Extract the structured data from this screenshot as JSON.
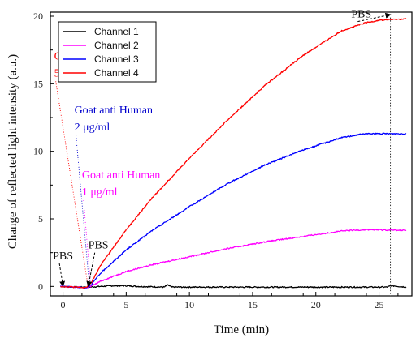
{
  "chart_data": {
    "type": "line",
    "xlabel": "Time (min)",
    "ylabel": "Change of reflected light intensity (a.u.)",
    "xlim": [
      -1,
      27.6
    ],
    "ylim": [
      -0.7,
      20.3
    ],
    "xticks": [
      0,
      5,
      10,
      15,
      20,
      25
    ],
    "yticks": [
      0,
      5,
      10,
      15,
      20
    ],
    "grid": false,
    "legend_position": "top-left",
    "series": [
      {
        "name": "Channel 1",
        "color": "#000000",
        "x": [
          -0.2,
          1,
          2,
          3,
          4,
          5,
          6,
          8,
          8.3,
          8.6,
          10,
          13,
          16,
          20,
          24,
          25.6,
          26,
          27.2
        ],
        "y": [
          0,
          -0.05,
          -0.05,
          0.0,
          0.05,
          0.05,
          0.0,
          -0.05,
          0.1,
          -0.05,
          -0.05,
          -0.05,
          -0.05,
          -0.05,
          -0.05,
          -0.05,
          0.05,
          -0.05
        ]
      },
      {
        "name": "Channel 2",
        "color": "#ff00ff",
        "x": [
          -0.2,
          1,
          1.8,
          2.2,
          3,
          5,
          7,
          10,
          13,
          16,
          19,
          22,
          24,
          27.2
        ],
        "y": [
          0,
          -0.05,
          -0.1,
          0.0,
          0.4,
          1.1,
          1.6,
          2.2,
          2.8,
          3.3,
          3.7,
          4.1,
          4.2,
          4.15
        ]
      },
      {
        "name": "Channel 3",
        "color": "#0000ff",
        "x": [
          -0.2,
          1,
          1.8,
          2.2,
          3,
          5,
          7,
          10,
          13,
          16,
          19,
          22,
          23.8,
          25,
          27.2
        ],
        "y": [
          0,
          -0.05,
          -0.1,
          0.1,
          1.0,
          2.7,
          4.1,
          5.9,
          7.6,
          9.0,
          10.1,
          11.0,
          11.3,
          11.3,
          11.3
        ]
      },
      {
        "name": "Channel 4",
        "color": "#ff0000",
        "x": [
          -0.2,
          1,
          1.8,
          2.2,
          3,
          5,
          7,
          10,
          13,
          16,
          19,
          22,
          23.9,
          25,
          27.2
        ],
        "y": [
          0,
          -0.05,
          -0.1,
          0.2,
          1.6,
          4.2,
          6.5,
          9.5,
          12.3,
          14.9,
          17.1,
          18.9,
          19.5,
          19.7,
          19.8
        ]
      }
    ],
    "annotations": [
      {
        "lines": [
          "Goat anti Human",
          "5 μg/ml"
        ],
        "color": "#ff0000",
        "x": -0.7,
        "y": 16.8,
        "line_height": 1.75,
        "target": [
          2.0,
          -0.1
        ]
      },
      {
        "lines": [
          "Goat anti Human",
          "2 μg/ml"
        ],
        "color": "#0000cd",
        "x": 0.9,
        "y": 12.8,
        "line_height": 1.75,
        "target": [
          2.1,
          -0.1
        ]
      },
      {
        "lines": [
          "Goat anti Human",
          "1 μg/ml"
        ],
        "color": "#ff00ff",
        "x": 1.5,
        "y": 8.0,
        "line_height": 1.75,
        "target": [
          2.2,
          -0.1
        ]
      },
      {
        "lines": [
          "PBS"
        ],
        "color": "#111111",
        "x": -0.8,
        "y": 2.0,
        "line_height": 1.75,
        "target": [
          0.0,
          -0.1
        ]
      },
      {
        "lines": [
          "PBS"
        ],
        "color": "#111111",
        "x": 2.0,
        "y": 2.8,
        "line_height": 1.75,
        "target": [
          2.0,
          -0.1
        ]
      },
      {
        "lines": [
          "PBS"
        ],
        "color": "#111111",
        "x": 22.8,
        "y": 19.9,
        "line_height": 1.75,
        "target": [
          25.9,
          20.0
        ]
      }
    ],
    "guide_line_x": 25.9
  }
}
